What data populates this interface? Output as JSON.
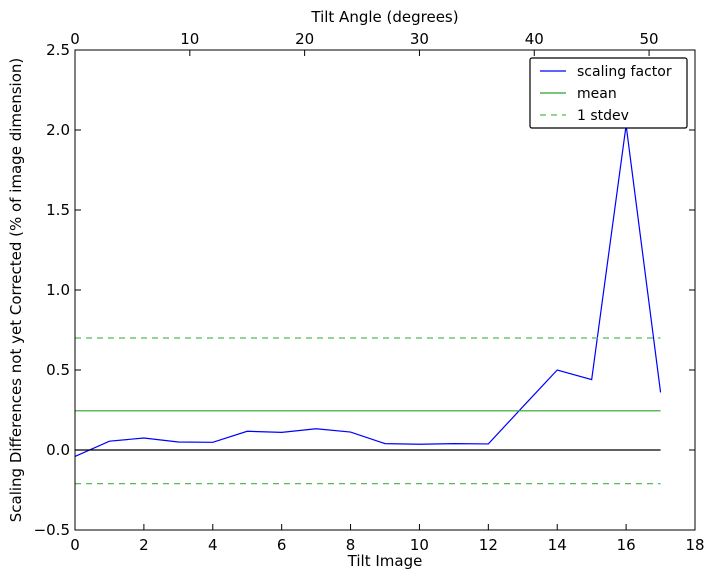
{
  "chart_data": {
    "type": "line",
    "title": "",
    "xlabel": "Tilt Image",
    "ylabel": "Scaling Differences not yet Corrected (% of image dimension)",
    "top_xlabel": "Tilt Angle (degrees)",
    "xlim": [
      0,
      18
    ],
    "ylim": [
      -0.5,
      2.5
    ],
    "top_xlim": [
      0,
      54
    ],
    "xticks": [
      0,
      2,
      4,
      6,
      8,
      10,
      12,
      14,
      16,
      18
    ],
    "xtick_labels": [
      "0",
      "2",
      "4",
      "6",
      "8",
      "10",
      "12",
      "14",
      "16",
      "18"
    ],
    "yticks": [
      -0.5,
      0.0,
      0.5,
      1.0,
      1.5,
      2.0,
      2.5
    ],
    "ytick_labels": [
      "−0.5",
      "0.0",
      "0.5",
      "1.0",
      "1.5",
      "2.0",
      "2.5"
    ],
    "top_xticks": [
      0,
      10,
      20,
      30,
      40,
      50
    ],
    "top_xtick_labels": [
      "0",
      "10",
      "20",
      "30",
      "40",
      "50"
    ],
    "grid": false,
    "legend_position": "top-right",
    "series": [
      {
        "name": "scaling factor",
        "style": "solid",
        "color": "#0000ff",
        "x": [
          0,
          1,
          2,
          3,
          4,
          5,
          6,
          7,
          8,
          9,
          10,
          11,
          12,
          13,
          14,
          15,
          16,
          17
        ],
        "y": [
          -0.04,
          0.055,
          0.075,
          0.05,
          0.048,
          0.117,
          0.11,
          0.133,
          0.112,
          0.04,
          0.036,
          0.04,
          0.038,
          0.27,
          0.5,
          0.44,
          2.03,
          0.36
        ]
      },
      {
        "name": "mean",
        "style": "solid",
        "color": "#2ca02c",
        "x": [
          0,
          17
        ],
        "y": [
          0.245,
          0.245
        ]
      },
      {
        "name": "1 stdev",
        "style": "dashed",
        "color": "#55bb55",
        "x": [
          0,
          17
        ],
        "y": [
          0.7,
          0.7
        ]
      },
      {
        "name": "",
        "style": "dashed",
        "color": "#55bb55",
        "x": [
          0,
          17
        ],
        "y": [
          -0.21,
          -0.21
        ]
      },
      {
        "name": "",
        "style": "solid",
        "color": "#000000",
        "x": [
          0,
          17
        ],
        "y": [
          0.0,
          0.0
        ]
      }
    ],
    "legend": [
      {
        "label": "scaling factor",
        "color": "#0000ff",
        "style": "solid"
      },
      {
        "label": "mean",
        "color": "#2ca02c",
        "style": "solid"
      },
      {
        "label": "1 stdev",
        "color": "#55bb55",
        "style": "dashed"
      }
    ]
  }
}
